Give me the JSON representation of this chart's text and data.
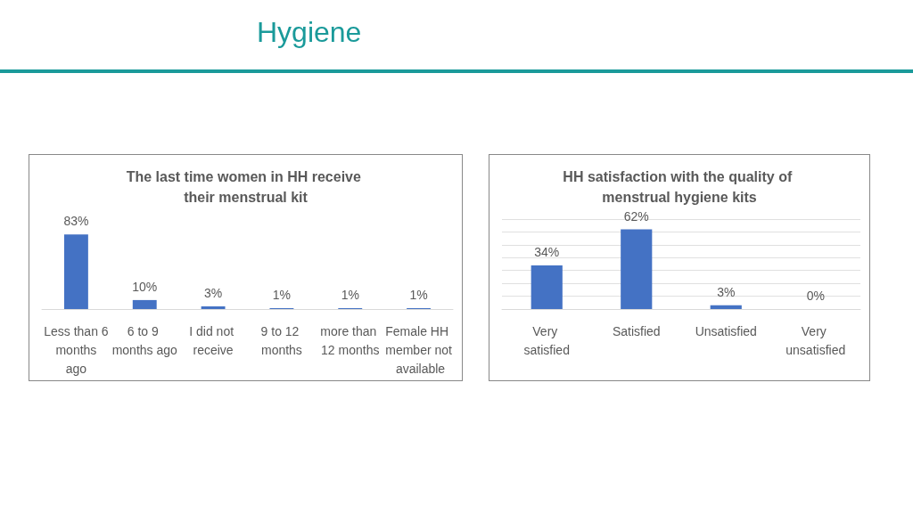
{
  "chart_data": [
    {
      "type": "other",
      "title": "Hygiene"
    },
    {
      "type": "bar",
      "title": "The last time women in HH receive their menstrual kit",
      "categories": [
        "Less than 6 months ago",
        "6 to 9 months ago",
        "I did not receive",
        "9 to 12 months",
        "more than 12 months",
        "Female HH member not available"
      ],
      "values": [
        83,
        10,
        3,
        1,
        1,
        1
      ],
      "value_labels": [
        "83%",
        "10%",
        "3%",
        "1%",
        "1%",
        "1%"
      ],
      "color": "#4472c4",
      "grid": false
    },
    {
      "type": "bar",
      "title": "HH satisfaction with the quality of menstrual hygiene kits",
      "categories": [
        "Very satisfied",
        "Satisfied",
        "Unsatisfied",
        "Very unsatisfied"
      ],
      "values": [
        34,
        62,
        3,
        0
      ],
      "value_labels": [
        "34%",
        "62%",
        "3%",
        "0%"
      ],
      "color": "#4472c4",
      "grid": true
    }
  ]
}
